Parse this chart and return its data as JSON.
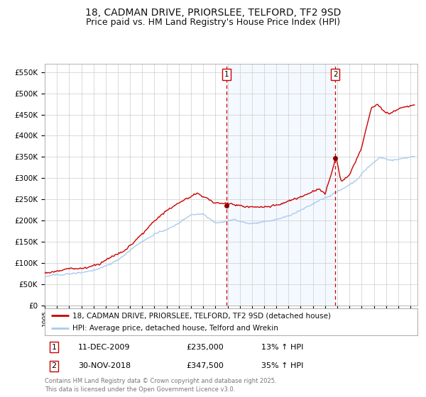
{
  "title": "18, CADMAN DRIVE, PRIORSLEE, TELFORD, TF2 9SD",
  "subtitle": "Price paid vs. HM Land Registry's House Price Index (HPI)",
  "ylabel_ticks": [
    "£0",
    "£50K",
    "£100K",
    "£150K",
    "£200K",
    "£250K",
    "£300K",
    "£350K",
    "£400K",
    "£450K",
    "£500K",
    "£550K"
  ],
  "ylim": [
    0,
    570000
  ],
  "ytick_values": [
    0,
    50000,
    100000,
    150000,
    200000,
    250000,
    300000,
    350000,
    400000,
    450000,
    500000,
    550000
  ],
  "line1_color": "#cc0000",
  "line2_color": "#aaccee",
  "marker_color": "#880000",
  "vline_color": "#cc0000",
  "shade_color": "#ddeeff",
  "legend_line1": "18, CADMAN DRIVE, PRIORSLEE, TELFORD, TF2 9SD (detached house)",
  "legend_line2": "HPI: Average price, detached house, Telford and Wrekin",
  "purchase1_price": 235000,
  "purchase2_price": 347500,
  "footer": "Contains HM Land Registry data © Crown copyright and database right 2025.\nThis data is licensed under the Open Government Licence v3.0.",
  "background_color": "#ffffff",
  "grid_color": "#cccccc",
  "title_fontsize": 10,
  "subtitle_fontsize": 9
}
